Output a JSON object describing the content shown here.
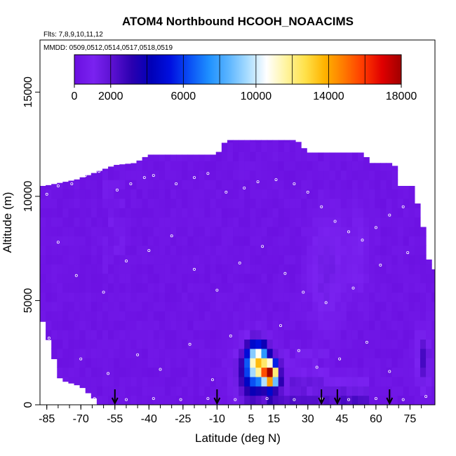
{
  "chart_data": {
    "type": "heatmap",
    "title": "ATOM4 Northbound HCOOH_NOAACIMS",
    "subtitle_flights": "Flts: 7,8,9,10,11,12",
    "subtitle_dates": "MMDD: 0509,0512,0514,0517,0518,0519",
    "xlabel": "Latitude (deg N)",
    "ylabel": "Altitude (m)",
    "xlim": [
      -88,
      86
    ],
    "ylim": [
      0,
      17500
    ],
    "xticks": [
      -85,
      -70,
      -55,
      -40,
      -25,
      -10,
      5,
      15,
      30,
      45,
      60,
      75
    ],
    "xtick_labels": [
      "-85",
      "-70",
      "-55",
      "-40",
      "-25",
      "-10",
      "5",
      "15",
      "30",
      "45",
      "60",
      "75"
    ],
    "yticks": [
      0,
      5000,
      10000,
      15000
    ],
    "ytick_labels": [
      "0",
      "5000",
      "10000",
      "15000"
    ],
    "colorbar": {
      "min": 0,
      "max": 18000,
      "ticks": [
        0,
        2000,
        6000,
        10000,
        14000,
        18000
      ],
      "tick_labels": [
        "0",
        "2000",
        "6000",
        "10000",
        "14000",
        "18000"
      ],
      "colors": [
        "#6a0fe0",
        "#7a22f0",
        "#5a10d0",
        "#2a00b0",
        "#0000b8",
        "#0010e0",
        "#0a50f5",
        "#1e90ff",
        "#5ab4ff",
        "#a8dcff",
        "#ffffff",
        "#fff4a0",
        "#ffe14a",
        "#ffb400",
        "#ff7a00",
        "#ff3a00",
        "#e00000",
        "#a00000"
      ]
    },
    "background_value": 300,
    "top_profile": [
      {
        "lat": -86,
        "alt": 10500
      },
      {
        "lat": -72,
        "alt": 10800
      },
      {
        "lat": -55,
        "alt": 11500
      },
      {
        "lat": -46,
        "alt": 11600
      },
      {
        "lat": -40,
        "alt": 12000
      },
      {
        "lat": -10,
        "alt": 12000
      },
      {
        "lat": -6,
        "alt": 12700
      },
      {
        "lat": 25,
        "alt": 12700
      },
      {
        "lat": 30,
        "alt": 12100
      },
      {
        "lat": 54,
        "alt": 12100
      },
      {
        "lat": 58,
        "alt": 11600
      },
      {
        "lat": 68,
        "alt": 11600
      },
      {
        "lat": 70,
        "alt": 10500
      },
      {
        "lat": 76,
        "alt": 10500
      },
      {
        "lat": 80,
        "alt": 9000
      },
      {
        "lat": 84,
        "alt": 6500
      }
    ],
    "bottom_profile": [
      {
        "lat": -86,
        "alt": 4000
      },
      {
        "lat": -84,
        "alt": 3000
      },
      {
        "lat": -82,
        "alt": 2300
      },
      {
        "lat": -79,
        "alt": 1200
      },
      {
        "lat": -70,
        "alt": 900
      },
      {
        "lat": -64,
        "alt": 300
      }
    ],
    "features": [
      {
        "label": "northern-tropics plume",
        "lat_range": [
          0,
          16
        ],
        "alt_range": [
          400,
          3000
        ],
        "max_value": 18000
      },
      {
        "label": "enhanced boundary-layer band",
        "lat_range": [
          12,
          58
        ],
        "alt_range": [
          0,
          1700
        ],
        "max_value": 3000
      },
      {
        "label": "mid-troposphere enhancement",
        "lat_range": [
          30,
          46
        ],
        "alt_range": [
          4000,
          9000
        ],
        "max_value": 1500
      },
      {
        "label": "high-latitude low-level enhancement",
        "lat_range": [
          78,
          84
        ],
        "alt_range": [
          1000,
          3600
        ],
        "max_value": 2500
      }
    ],
    "arrows_lat": [
      -55,
      -10,
      36,
      43,
      66
    ],
    "flight_track_points": [
      [
        -85,
        10100
      ],
      [
        -80,
        10500
      ],
      [
        -74,
        10600
      ],
      [
        -68,
        11000
      ],
      [
        -62,
        11200
      ],
      [
        -54,
        10300
      ],
      [
        -48,
        10600
      ],
      [
        -42,
        10900
      ],
      [
        -38,
        11000
      ],
      [
        -28,
        10600
      ],
      [
        -20,
        10900
      ],
      [
        -14,
        11100
      ],
      [
        -6,
        10200
      ],
      [
        2,
        10400
      ],
      [
        8,
        10700
      ],
      [
        16,
        10800
      ],
      [
        24,
        10600
      ],
      [
        30,
        10200
      ],
      [
        36,
        9500
      ],
      [
        42,
        8800
      ],
      [
        48,
        8300
      ],
      [
        54,
        7900
      ],
      [
        60,
        8500
      ],
      [
        66,
        9100
      ],
      [
        72,
        9500
      ],
      [
        78,
        10000
      ],
      [
        -80,
        7800
      ],
      [
        -72,
        6200
      ],
      [
        -60,
        5400
      ],
      [
        -50,
        6900
      ],
      [
        -40,
        7400
      ],
      [
        -30,
        8100
      ],
      [
        -20,
        6500
      ],
      [
        -10,
        5500
      ],
      [
        0,
        6800
      ],
      [
        10,
        7600
      ],
      [
        20,
        6300
      ],
      [
        28,
        5400
      ],
      [
        38,
        4900
      ],
      [
        50,
        5600
      ],
      [
        62,
        6700
      ],
      [
        74,
        7300
      ],
      [
        -84,
        3200
      ],
      [
        -70,
        2200
      ],
      [
        -58,
        1500
      ],
      [
        -45,
        2400
      ],
      [
        -35,
        1700
      ],
      [
        -22,
        2900
      ],
      [
        -12,
        1200
      ],
      [
        -4,
        3300
      ],
      [
        18,
        3800
      ],
      [
        26,
        2600
      ],
      [
        34,
        1800
      ],
      [
        44,
        2200
      ],
      [
        56,
        3000
      ],
      [
        66,
        1600
      ],
      [
        -64,
        300
      ],
      [
        -50,
        250
      ],
      [
        -38,
        300
      ],
      [
        -26,
        250
      ],
      [
        -14,
        300
      ],
      [
        -2,
        250
      ],
      [
        12,
        300
      ],
      [
        24,
        250
      ],
      [
        36,
        300
      ],
      [
        48,
        250
      ],
      [
        60,
        300
      ],
      [
        72,
        250
      ],
      [
        82,
        400
      ]
    ]
  }
}
